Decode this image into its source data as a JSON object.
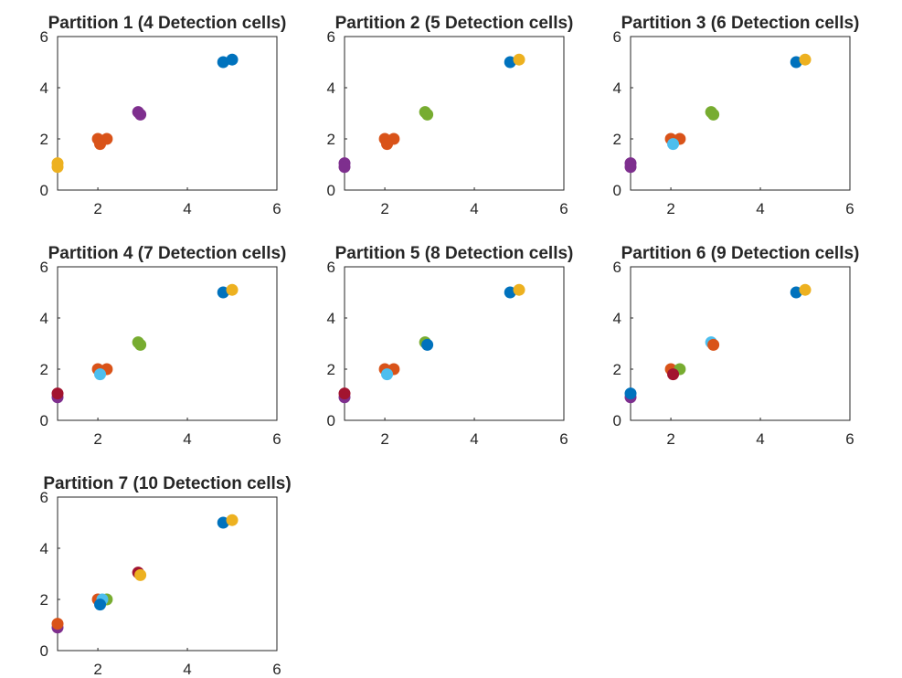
{
  "figure": {
    "background": "#ffffff",
    "axis_color": "#262626",
    "palette": {
      "blue": "#0072BD",
      "orange": "#D95319",
      "yellow": "#EDB120",
      "purple": "#7E2F8E",
      "green": "#77AC30",
      "lightblue": "#4DBEEE",
      "darkred": "#A2142F"
    }
  },
  "chart_data": [
    {
      "type": "scatter",
      "title": "Partition 1 (4 Detection cells)",
      "xlim": [
        1.1,
        6
      ],
      "ylim": [
        0,
        6
      ],
      "xticks": [
        2,
        4,
        6
      ],
      "yticks": [
        0,
        2,
        4,
        6
      ],
      "grid": false,
      "points": [
        {
          "x": 1.1,
          "y": 1.05,
          "color": "yellow"
        },
        {
          "x": 1.1,
          "y": 0.9,
          "color": "yellow"
        },
        {
          "x": 2.0,
          "y": 2.0,
          "color": "orange"
        },
        {
          "x": 2.2,
          "y": 2.0,
          "color": "orange"
        },
        {
          "x": 2.05,
          "y": 1.8,
          "color": "orange"
        },
        {
          "x": 2.9,
          "y": 3.05,
          "color": "purple"
        },
        {
          "x": 2.95,
          "y": 2.95,
          "color": "purple"
        },
        {
          "x": 4.8,
          "y": 5.0,
          "color": "blue"
        },
        {
          "x": 5.0,
          "y": 5.1,
          "color": "blue"
        }
      ]
    },
    {
      "type": "scatter",
      "title": "Partition 2 (5 Detection cells)",
      "xlim": [
        1.1,
        6
      ],
      "ylim": [
        0,
        6
      ],
      "xticks": [
        2,
        4,
        6
      ],
      "yticks": [
        0,
        2,
        4,
        6
      ],
      "grid": false,
      "points": [
        {
          "x": 1.1,
          "y": 1.05,
          "color": "purple"
        },
        {
          "x": 1.1,
          "y": 0.9,
          "color": "purple"
        },
        {
          "x": 2.0,
          "y": 2.0,
          "color": "orange"
        },
        {
          "x": 2.2,
          "y": 2.0,
          "color": "orange"
        },
        {
          "x": 2.05,
          "y": 1.8,
          "color": "orange"
        },
        {
          "x": 2.9,
          "y": 3.05,
          "color": "green"
        },
        {
          "x": 2.95,
          "y": 2.95,
          "color": "green"
        },
        {
          "x": 4.8,
          "y": 5.0,
          "color": "blue"
        },
        {
          "x": 5.0,
          "y": 5.1,
          "color": "yellow"
        }
      ]
    },
    {
      "type": "scatter",
      "title": "Partition 3 (6 Detection cells)",
      "xlim": [
        1.1,
        6
      ],
      "ylim": [
        0,
        6
      ],
      "xticks": [
        2,
        4,
        6
      ],
      "yticks": [
        0,
        2,
        4,
        6
      ],
      "grid": false,
      "points": [
        {
          "x": 1.1,
          "y": 1.05,
          "color": "purple"
        },
        {
          "x": 1.1,
          "y": 0.9,
          "color": "purple"
        },
        {
          "x": 2.0,
          "y": 2.0,
          "color": "orange"
        },
        {
          "x": 2.2,
          "y": 2.0,
          "color": "orange"
        },
        {
          "x": 2.05,
          "y": 1.8,
          "color": "lightblue"
        },
        {
          "x": 2.9,
          "y": 3.05,
          "color": "green"
        },
        {
          "x": 2.95,
          "y": 2.95,
          "color": "green"
        },
        {
          "x": 4.8,
          "y": 5.0,
          "color": "blue"
        },
        {
          "x": 5.0,
          "y": 5.1,
          "color": "yellow"
        }
      ]
    },
    {
      "type": "scatter",
      "title": "Partition 4 (7 Detection cells)",
      "xlim": [
        1.1,
        6
      ],
      "ylim": [
        0,
        6
      ],
      "xticks": [
        2,
        4,
        6
      ],
      "yticks": [
        0,
        2,
        4,
        6
      ],
      "grid": false,
      "points": [
        {
          "x": 1.1,
          "y": 0.9,
          "color": "purple"
        },
        {
          "x": 1.1,
          "y": 1.05,
          "color": "darkred"
        },
        {
          "x": 2.0,
          "y": 2.0,
          "color": "orange"
        },
        {
          "x": 2.2,
          "y": 2.0,
          "color": "orange"
        },
        {
          "x": 2.05,
          "y": 1.8,
          "color": "lightblue"
        },
        {
          "x": 2.9,
          "y": 3.05,
          "color": "green"
        },
        {
          "x": 2.95,
          "y": 2.95,
          "color": "green"
        },
        {
          "x": 4.8,
          "y": 5.0,
          "color": "blue"
        },
        {
          "x": 5.0,
          "y": 5.1,
          "color": "yellow"
        }
      ]
    },
    {
      "type": "scatter",
      "title": "Partition 5 (8 Detection cells)",
      "xlim": [
        1.1,
        6
      ],
      "ylim": [
        0,
        6
      ],
      "xticks": [
        2,
        4,
        6
      ],
      "yticks": [
        0,
        2,
        4,
        6
      ],
      "grid": false,
      "points": [
        {
          "x": 1.1,
          "y": 0.9,
          "color": "purple"
        },
        {
          "x": 1.1,
          "y": 1.05,
          "color": "darkred"
        },
        {
          "x": 2.0,
          "y": 2.0,
          "color": "orange"
        },
        {
          "x": 2.2,
          "y": 2.0,
          "color": "orange"
        },
        {
          "x": 2.05,
          "y": 1.8,
          "color": "lightblue"
        },
        {
          "x": 2.9,
          "y": 3.05,
          "color": "green"
        },
        {
          "x": 2.95,
          "y": 2.95,
          "color": "blue"
        },
        {
          "x": 4.8,
          "y": 5.0,
          "color": "blue"
        },
        {
          "x": 5.0,
          "y": 5.1,
          "color": "yellow"
        }
      ]
    },
    {
      "type": "scatter",
      "title": "Partition 6 (9 Detection cells)",
      "xlim": [
        1.1,
        6
      ],
      "ylim": [
        0,
        6
      ],
      "xticks": [
        2,
        4,
        6
      ],
      "yticks": [
        0,
        2,
        4,
        6
      ],
      "grid": false,
      "points": [
        {
          "x": 1.1,
          "y": 0.9,
          "color": "purple"
        },
        {
          "x": 1.1,
          "y": 1.05,
          "color": "blue"
        },
        {
          "x": 2.0,
          "y": 2.0,
          "color": "orange"
        },
        {
          "x": 2.2,
          "y": 2.0,
          "color": "green"
        },
        {
          "x": 2.05,
          "y": 1.8,
          "color": "darkred"
        },
        {
          "x": 2.9,
          "y": 3.05,
          "color": "lightblue"
        },
        {
          "x": 2.95,
          "y": 2.95,
          "color": "orange"
        },
        {
          "x": 4.8,
          "y": 5.0,
          "color": "blue"
        },
        {
          "x": 5.0,
          "y": 5.1,
          "color": "yellow"
        }
      ]
    },
    {
      "type": "scatter",
      "title": "Partition 7 (10 Detection cells)",
      "xlim": [
        1.1,
        6
      ],
      "ylim": [
        0,
        6
      ],
      "xticks": [
        2,
        4,
        6
      ],
      "yticks": [
        0,
        2,
        4,
        6
      ],
      "grid": false,
      "points": [
        {
          "x": 1.1,
          "y": 0.9,
          "color": "purple"
        },
        {
          "x": 1.1,
          "y": 1.05,
          "color": "orange"
        },
        {
          "x": 2.0,
          "y": 2.0,
          "color": "orange"
        },
        {
          "x": 2.2,
          "y": 2.0,
          "color": "green"
        },
        {
          "x": 2.1,
          "y": 2.0,
          "color": "lightblue"
        },
        {
          "x": 2.05,
          "y": 1.8,
          "color": "blue"
        },
        {
          "x": 2.9,
          "y": 3.05,
          "color": "darkred"
        },
        {
          "x": 2.95,
          "y": 2.95,
          "color": "yellow"
        },
        {
          "x": 4.8,
          "y": 5.0,
          "color": "blue"
        },
        {
          "x": 5.0,
          "y": 5.1,
          "color": "yellow"
        }
      ]
    }
  ]
}
